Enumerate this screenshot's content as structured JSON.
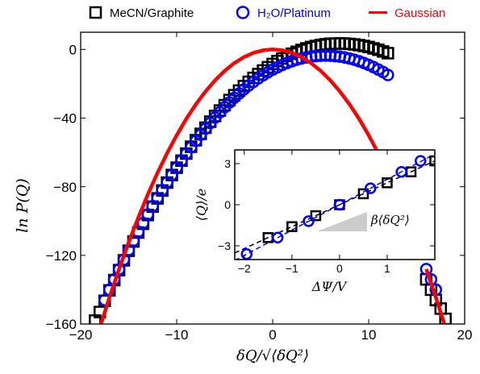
{
  "legend": [
    {
      "label": "MeCN/Graphite",
      "color": "#000000",
      "marker": "square"
    },
    {
      "label": "H₂O/Platinum",
      "color": "#0000ff",
      "marker": "circle"
    },
    {
      "label": "Gaussian",
      "color": "#ff0000",
      "marker": "line"
    }
  ],
  "chart_data": [
    {
      "type": "scatter",
      "xlabel": "δQ/√⟨δQ²⟩",
      "ylabel": "ln P(Q)",
      "xlim": [
        -20,
        20
      ],
      "ylim": [
        -160,
        10
      ],
      "xticks": [
        -20,
        -10,
        0,
        10,
        20
      ],
      "yticks": [
        0,
        -40,
        -80,
        -120,
        -160
      ],
      "xtick_labels": [
        "−20",
        "−10",
        "0",
        "10",
        "20"
      ],
      "ytick_labels": [
        "0",
        "−40",
        "−80",
        "−120",
        "−160"
      ],
      "grid": false,
      "series": [
        {
          "name": "MeCN/Graphite",
          "marker": "square",
          "color": "#000000",
          "x": [
            -18.5,
            -18,
            -17.5,
            -17,
            -16.5,
            -16,
            -15.5,
            -15,
            -14.5,
            -14,
            -13.5,
            -13,
            -12.5,
            -12,
            -11.5,
            -11,
            -10.5,
            -10,
            -9.5,
            -9,
            -8.5,
            -8,
            -7.5,
            -7,
            -6.5,
            -6,
            -5.5,
            -5,
            -4.5,
            -4,
            -3.5,
            -3,
            -2.5,
            -2,
            -1.5,
            -1,
            -0.5,
            0,
            0.5,
            1,
            1.5,
            2,
            2.5,
            3,
            3.5,
            4,
            4.5,
            5,
            5.5,
            6,
            6.5,
            7,
            7.5,
            8,
            8.5,
            9,
            9.5,
            10,
            10.5,
            11,
            11.5,
            12,
            16,
            16.5,
            17,
            17.5,
            18
          ],
          "y": [
            -158,
            -153,
            -146.5,
            -140.4,
            -134.4,
            -128.6,
            -122.9,
            -117.3,
            -111.9,
            -106.7,
            -101.6,
            -96.5,
            -91.6,
            -86.8,
            -82.2,
            -77.6,
            -73.2,
            -68.9,
            -64.8,
            -60.7,
            -56.7,
            -52.9,
            -49.2,
            -45.6,
            -42.1,
            -38.8,
            -35.6,
            -32.5,
            -29.5,
            -26.7,
            -24,
            -21.4,
            -18.9,
            -16.6,
            -14.4,
            -12.3,
            -10.4,
            -8.5,
            -6.8,
            -5.3,
            -3.8,
            -2.5,
            -1.4,
            -0.3,
            0.6,
            1.4,
            2,
            2.6,
            3,
            3.3,
            3.4,
            3.5,
            3.4,
            3.2,
            2.9,
            2.5,
            2,
            1.4,
            0.6,
            -0.2,
            -1.2,
            -2.2,
            -134,
            -140,
            -146,
            -151,
            -157
          ]
        },
        {
          "name": "H₂O/Platinum",
          "marker": "circle",
          "color": "#0000ff",
          "x": [
            -17.5,
            -17,
            -16.5,
            -16,
            -15.5,
            -15,
            -14.5,
            -14,
            -13.5,
            -13,
            -12.5,
            -12,
            -11.5,
            -11,
            -10.5,
            -10,
            -9.5,
            -9,
            -8.5,
            -8,
            -7.5,
            -7,
            -6.5,
            -6,
            -5.5,
            -5,
            -4.5,
            -4,
            -3.5,
            -3,
            -2.5,
            -2,
            -1.5,
            -1,
            -0.5,
            0,
            0.5,
            1,
            1.5,
            2,
            2.5,
            3,
            3.5,
            4,
            4.5,
            5,
            5.5,
            6,
            6.5,
            7,
            7.5,
            8,
            8.5,
            9,
            9.5,
            10,
            10.5,
            11,
            11.5,
            12,
            16,
            16.5,
            17
          ],
          "y": [
            -146,
            -140,
            -134,
            -128.2,
            -122.5,
            -116.9,
            -111.5,
            -106.3,
            -101.2,
            -96.2,
            -91.3,
            -86.6,
            -82,
            -77.5,
            -73.1,
            -68.9,
            -64.8,
            -60.8,
            -57,
            -53.3,
            -49.7,
            -46.2,
            -42.9,
            -39.7,
            -36.6,
            -33.7,
            -30.9,
            -28.2,
            -25.7,
            -23.3,
            -21,
            -18.9,
            -16.9,
            -15.1,
            -13.4,
            -11.8,
            -10.4,
            -9.1,
            -7.9,
            -6.9,
            -6,
            -5.3,
            -4.7,
            -4.2,
            -3.9,
            -3.7,
            -3.6,
            -3.7,
            -3.9,
            -4.2,
            -4.7,
            -5.3,
            -6,
            -6.9,
            -7.9,
            -9,
            -10.3,
            -11.7,
            -13.2,
            -14.9,
            -128,
            -134,
            -140
          ]
        },
        {
          "name": "Gaussian",
          "marker": "line",
          "color": "#ff0000",
          "x": [
            -18,
            -17,
            -16,
            -15,
            -14,
            -13,
            -12,
            -11,
            -10,
            -9,
            -8,
            -7,
            -6,
            -5,
            -4,
            -3,
            -2,
            -1,
            0,
            1,
            2,
            3,
            4,
            5,
            6,
            7,
            8,
            9,
            10,
            11,
            12,
            16,
            17,
            18
          ],
          "y": [
            -162,
            -144.5,
            -128,
            -112.5,
            -98,
            -84.5,
            -72,
            -60.5,
            -50,
            -40.5,
            -32,
            -24.5,
            -18,
            -12.5,
            -8,
            -4.5,
            -2,
            -0.5,
            0,
            -0.5,
            -2,
            -4.5,
            -8,
            -12.5,
            -18,
            -24.5,
            -32,
            -40.5,
            -50,
            -60.5,
            -72,
            -128,
            -144.5,
            -162
          ]
        }
      ]
    },
    {
      "type": "scatter",
      "inset": true,
      "xlabel": "ΔΨ/V",
      "ylabel": "⟨Q⟩/e",
      "xlim": [
        -2.2,
        2
      ],
      "ylim": [
        -4,
        4
      ],
      "xticks": [
        -2,
        -1,
        0,
        1
      ],
      "yticks": [
        3,
        0,
        -3
      ],
      "xtick_labels": [
        "−2",
        "−1",
        "0",
        "1"
      ],
      "ytick_labels": [
        "3",
        "0",
        "−3"
      ],
      "annotation": "β⟨δQ²⟩",
      "series": [
        {
          "name": "MeCN/Graphite",
          "marker": "square",
          "color": "#000000",
          "x": [
            -1.5,
            -1,
            -0.5,
            0,
            0.5,
            1,
            1.5,
            2
          ],
          "y": [
            -2.4,
            -1.6,
            -0.8,
            0,
            0.8,
            1.6,
            2.4,
            3.2
          ],
          "fit": {
            "slope": 1.6,
            "intercept": 0
          }
        },
        {
          "name": "H₂O/Platinum",
          "marker": "circle",
          "color": "#0000ff",
          "x": [
            -1.95,
            -1.3,
            -0.65,
            0,
            0.65,
            1.3,
            1.7
          ],
          "y": [
            -3.6,
            -2.4,
            -1.2,
            0,
            1.2,
            2.4,
            3.2
          ],
          "fit": {
            "slope": 1.85,
            "intercept": 0
          }
        }
      ]
    }
  ]
}
